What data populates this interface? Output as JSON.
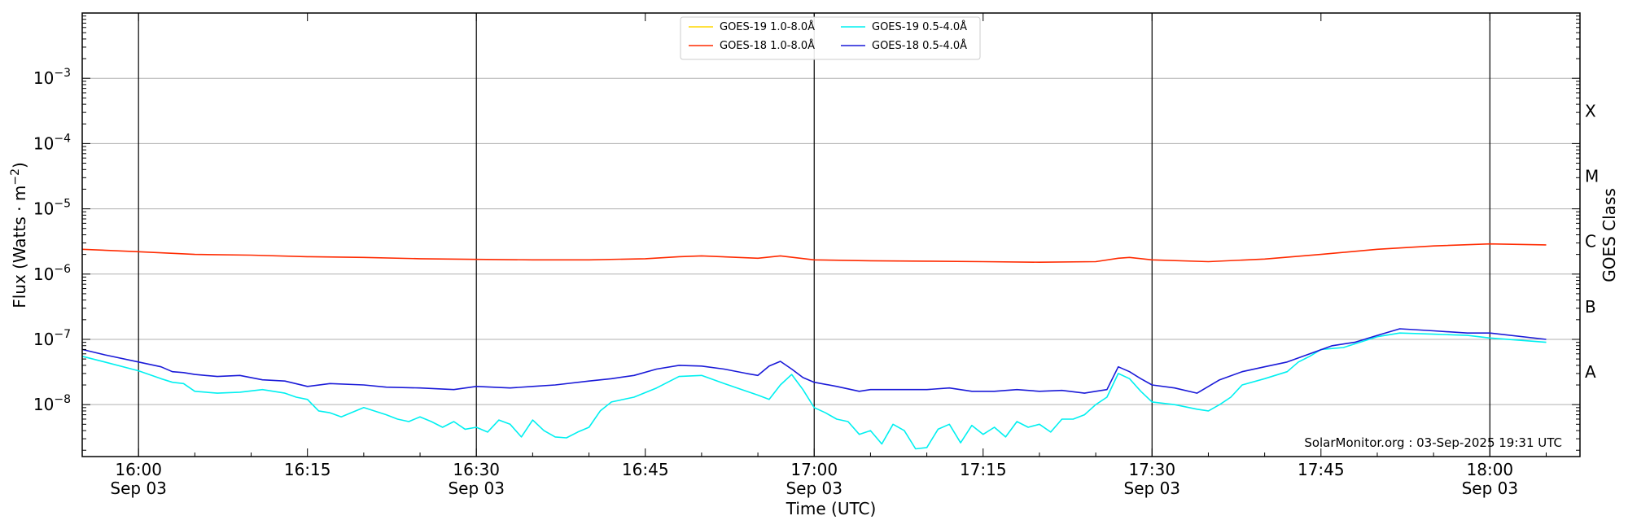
{
  "chart_data": {
    "type": "line",
    "xlabel": "Time (UTC)",
    "ylabel": "Flux (Watts · m",
    "ylabel_exp": "−2",
    "ylabel_close": ")",
    "right_label": "GOES Class",
    "credit": "SolarMonitor.org : 03-Sep-2025 19:31 UTC",
    "x_range": [
      "15:55",
      "18:08"
    ],
    "y_scale": "log",
    "y_range": [
      1.6e-09,
      0.01
    ],
    "grid": "horizontal",
    "legend_position": "top-center",
    "x_ticks": [
      {
        "time": "16:00",
        "label": "16:00",
        "date": "Sep 03"
      },
      {
        "time": "16:15",
        "label": "16:15",
        "date": ""
      },
      {
        "time": "16:30",
        "label": "16:30",
        "date": "Sep 03"
      },
      {
        "time": "16:45",
        "label": "16:45",
        "date": ""
      },
      {
        "time": "17:00",
        "label": "17:00",
        "date": "Sep 03"
      },
      {
        "time": "17:15",
        "label": "17:15",
        "date": ""
      },
      {
        "time": "17:30",
        "label": "17:30",
        "date": "Sep 03"
      },
      {
        "time": "17:45",
        "label": "17:45",
        "date": ""
      },
      {
        "time": "18:00",
        "label": "18:00",
        "date": "Sep 03"
      }
    ],
    "y_ticks": [
      {
        "value": 1e-08,
        "base": "10",
        "exp": "−8"
      },
      {
        "value": 1e-07,
        "base": "10",
        "exp": "−7"
      },
      {
        "value": 1e-06,
        "base": "10",
        "exp": "−6"
      },
      {
        "value": 1e-05,
        "base": "10",
        "exp": "−5"
      },
      {
        "value": 0.0001,
        "base": "10",
        "exp": "−4"
      },
      {
        "value": 0.001,
        "base": "10",
        "exp": "−3"
      }
    ],
    "vertical_lines": [
      "16:00",
      "16:30",
      "17:00",
      "17:30",
      "18:00"
    ],
    "goes_classes": [
      {
        "label": "A",
        "value": 3.16e-08
      },
      {
        "label": "B",
        "value": 3.16e-07
      },
      {
        "label": "C",
        "value": 3.16e-06
      },
      {
        "label": "M",
        "value": 3.16e-05
      },
      {
        "label": "X",
        "value": 0.000316
      }
    ],
    "series": [
      {
        "name": "GOES-19 1.0-8.0Å",
        "color": "#ffd700",
        "x": [],
        "y": []
      },
      {
        "name": "GOES-18 1.0-8.0Å",
        "color": "#ff2a00",
        "x": [
          "15:55",
          "16:00",
          "16:05",
          "16:10",
          "16:15",
          "16:20",
          "16:25",
          "16:30",
          "16:35",
          "16:40",
          "16:45",
          "16:48",
          "16:50",
          "16:55",
          "16:57",
          "17:00",
          "17:05",
          "17:10",
          "17:15",
          "17:20",
          "17:25",
          "17:27",
          "17:28",
          "17:30",
          "17:35",
          "17:40",
          "17:45",
          "17:50",
          "17:55",
          "18:00",
          "18:05"
        ],
        "y": [
          2.4e-06,
          2.2e-06,
          2e-06,
          1.95e-06,
          1.85e-06,
          1.8e-06,
          1.72e-06,
          1.68e-06,
          1.65e-06,
          1.65e-06,
          1.72e-06,
          1.85e-06,
          1.9e-06,
          1.75e-06,
          1.9e-06,
          1.65e-06,
          1.6e-06,
          1.58e-06,
          1.55e-06,
          1.52e-06,
          1.55e-06,
          1.75e-06,
          1.8e-06,
          1.65e-06,
          1.55e-06,
          1.7e-06,
          2e-06,
          2.4e-06,
          2.7e-06,
          2.9e-06,
          2.8e-06
        ]
      },
      {
        "name": "GOES-19 0.5-4.0Å",
        "color": "#00f0f0",
        "x": [
          "15:55",
          "15:57",
          "16:00",
          "16:02",
          "16:03",
          "16:04",
          "16:05",
          "16:07",
          "16:09",
          "16:11",
          "16:13",
          "16:14",
          "16:15",
          "16:16",
          "16:17",
          "16:18",
          "16:20",
          "16:22",
          "16:23",
          "16:24",
          "16:25",
          "16:26",
          "16:27",
          "16:28",
          "16:29",
          "16:30",
          "16:31",
          "16:32",
          "16:33",
          "16:34",
          "16:35",
          "16:36",
          "16:37",
          "16:38",
          "16:39",
          "16:40",
          "16:41",
          "16:42",
          "16:44",
          "16:46",
          "16:48",
          "16:50",
          "16:52",
          "16:54",
          "16:55",
          "16:56",
          "16:57",
          "16:58",
          "16:59",
          "17:00",
          "17:01",
          "17:02",
          "17:03",
          "17:04",
          "17:05",
          "17:06",
          "17:07",
          "17:08",
          "17:09",
          "17:10",
          "17:11",
          "17:12",
          "17:13",
          "17:14",
          "17:15",
          "17:16",
          "17:17",
          "17:18",
          "17:19",
          "17:20",
          "17:21",
          "17:22",
          "17:23",
          "17:24",
          "17:25",
          "17:26",
          "17:27",
          "17:28",
          "17:29",
          "17:30",
          "17:32",
          "17:34",
          "17:35",
          "17:36",
          "17:37",
          "17:38",
          "17:40",
          "17:42",
          "17:43",
          "17:44",
          "17:45",
          "17:47",
          "17:50",
          "17:52",
          "17:55",
          "17:58",
          "18:00",
          "18:05"
        ],
        "y": [
          5.5e-08,
          4.5e-08,
          3.3e-08,
          2.5e-08,
          2.2e-08,
          2.1e-08,
          1.6e-08,
          1.5e-08,
          1.55e-08,
          1.7e-08,
          1.5e-08,
          1.3e-08,
          1.2e-08,
          8e-09,
          7.5e-09,
          6.5e-09,
          9e-09,
          7e-09,
          6e-09,
          5.5e-09,
          6.5e-09,
          5.5e-09,
          4.5e-09,
          5.5e-09,
          4.2e-09,
          4.5e-09,
          3.8e-09,
          5.8e-09,
          5e-09,
          3.2e-09,
          5.8e-09,
          4e-09,
          3.2e-09,
          3.1e-09,
          3.8e-09,
          4.5e-09,
          8e-09,
          1.1e-08,
          1.3e-08,
          1.8e-08,
          2.7e-08,
          2.8e-08,
          2.1e-08,
          1.6e-08,
          1.4e-08,
          1.2e-08,
          2e-08,
          2.9e-08,
          1.7e-08,
          9e-09,
          7.5e-09,
          6e-09,
          5.5e-09,
          3.5e-09,
          4e-09,
          2.5e-09,
          5e-09,
          4e-09,
          2.1e-09,
          2.2e-09,
          4.2e-09,
          5e-09,
          2.6e-09,
          4.8e-09,
          3.5e-09,
          4.5e-09,
          3.2e-09,
          5.5e-09,
          4.5e-09,
          5e-09,
          3.8e-09,
          6e-09,
          6e-09,
          7e-09,
          1e-08,
          1.3e-08,
          3e-08,
          2.5e-08,
          1.6e-08,
          1.1e-08,
          1e-08,
          8.5e-09,
          8e-09,
          1e-08,
          1.3e-08,
          2e-08,
          2.5e-08,
          3.2e-08,
          4.5e-08,
          5.5e-08,
          7e-08,
          7.5e-08,
          1.1e-07,
          1.25e-07,
          1.2e-07,
          1.15e-07,
          1.05e-07,
          9e-08
        ]
      },
      {
        "name": "GOES-18 0.5-4.0Å",
        "color": "#1a1ad8",
        "x": [
          "15:55",
          "15:57",
          "16:00",
          "16:02",
          "16:03",
          "16:04",
          "16:05",
          "16:07",
          "16:09",
          "16:11",
          "16:13",
          "16:15",
          "16:17",
          "16:20",
          "16:22",
          "16:25",
          "16:28",
          "16:30",
          "16:33",
          "16:35",
          "16:37",
          "16:40",
          "16:42",
          "16:44",
          "16:46",
          "16:48",
          "16:50",
          "16:52",
          "16:54",
          "16:55",
          "16:56",
          "16:57",
          "16:58",
          "16:59",
          "17:00",
          "17:02",
          "17:04",
          "17:05",
          "17:07",
          "17:10",
          "17:12",
          "17:14",
          "17:16",
          "17:18",
          "17:20",
          "17:22",
          "17:24",
          "17:25",
          "17:26",
          "17:27",
          "17:28",
          "17:29",
          "17:30",
          "17:32",
          "17:34",
          "17:36",
          "17:38",
          "17:40",
          "17:42",
          "17:44",
          "17:46",
          "17:48",
          "17:50",
          "17:52",
          "17:55",
          "17:58",
          "18:00",
          "18:05"
        ],
        "y": [
          7e-08,
          5.8e-08,
          4.5e-08,
          3.8e-08,
          3.2e-08,
          3.1e-08,
          2.9e-08,
          2.7e-08,
          2.8e-08,
          2.4e-08,
          2.3e-08,
          1.9e-08,
          2.1e-08,
          2e-08,
          1.85e-08,
          1.8e-08,
          1.7e-08,
          1.9e-08,
          1.8e-08,
          1.9e-08,
          2e-08,
          2.3e-08,
          2.5e-08,
          2.8e-08,
          3.5e-08,
          4e-08,
          3.9e-08,
          3.5e-08,
          3e-08,
          2.8e-08,
          3.9e-08,
          4.6e-08,
          3.5e-08,
          2.6e-08,
          2.2e-08,
          1.9e-08,
          1.6e-08,
          1.7e-08,
          1.7e-08,
          1.7e-08,
          1.8e-08,
          1.6e-08,
          1.6e-08,
          1.7e-08,
          1.6e-08,
          1.65e-08,
          1.5e-08,
          1.6e-08,
          1.7e-08,
          3.8e-08,
          3.2e-08,
          2.5e-08,
          2e-08,
          1.8e-08,
          1.5e-08,
          2.4e-08,
          3.2e-08,
          3.8e-08,
          4.5e-08,
          6e-08,
          8e-08,
          9e-08,
          1.15e-07,
          1.45e-07,
          1.35e-07,
          1.25e-07,
          1.25e-07,
          1e-07
        ]
      }
    ]
  }
}
